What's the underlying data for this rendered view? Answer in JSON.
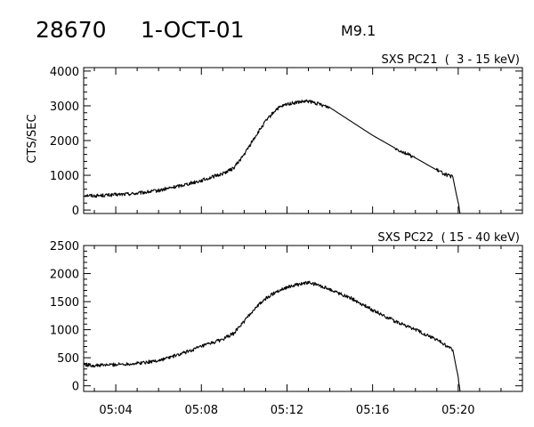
{
  "header": {
    "event_id": "28670",
    "date": "1-OCT-01",
    "flare_class": "M9.1"
  },
  "chart_data": [
    {
      "type": "line",
      "title": "SXS PC21  (  3 - 15 keV)",
      "ylabel": "CTS/SEC",
      "xlim": [
        "05:02:30",
        "05:23:00"
      ],
      "ylim": [
        -100,
        4100
      ],
      "yticks": [
        0,
        1000,
        2000,
        3000,
        4000
      ],
      "xticks": [
        "05:04",
        "05:08",
        "05:12",
        "05:16",
        "05:20"
      ],
      "series": [
        {
          "x": [
            "05:02:30",
            "05:03:00",
            "05:04:00",
            "05:05:00",
            "05:06:00",
            "05:07:00",
            "05:08:00",
            "05:09:00",
            "05:09:30",
            "05:10:00",
            "05:10:30",
            "05:11:00",
            "05:11:30",
            "05:12:00",
            "05:12:30",
            "05:13:00",
            "05:13:30",
            "05:14:00",
            "05:15:00",
            "05:16:00",
            "05:17:00",
            "05:18:00",
            "05:19:00",
            "05:19:30",
            "05:19:45",
            "05:20:00",
            "05:20:05"
          ],
          "y": [
            430,
            410,
            440,
            480,
            560,
            700,
            850,
            1050,
            1200,
            1600,
            2100,
            2550,
            2900,
            3050,
            3100,
            3130,
            3050,
            2950,
            2550,
            2150,
            1800,
            1500,
            1150,
            1000,
            950,
            200,
            -100
          ]
        }
      ]
    },
    {
      "type": "line",
      "title": "SXS PC22  ( 15 - 40 keV)",
      "ylabel": "",
      "xlim": [
        "05:02:30",
        "05:23:00"
      ],
      "ylim": [
        -100,
        2500
      ],
      "yticks": [
        0,
        500,
        1000,
        1500,
        2000,
        2500
      ],
      "xticks": [
        "05:04",
        "05:08",
        "05:12",
        "05:16",
        "05:20"
      ],
      "series": [
        {
          "x": [
            "05:02:30",
            "05:03:00",
            "05:04:00",
            "05:05:00",
            "05:06:00",
            "05:07:00",
            "05:08:00",
            "05:09:00",
            "05:09:30",
            "05:10:00",
            "05:10:30",
            "05:11:00",
            "05:11:30",
            "05:12:00",
            "05:12:30",
            "05:13:00",
            "05:13:30",
            "05:14:00",
            "05:15:00",
            "05:16:00",
            "05:17:00",
            "05:18:00",
            "05:19:00",
            "05:19:30",
            "05:19:45",
            "05:20:00",
            "05:20:05"
          ],
          "y": [
            380,
            360,
            380,
            400,
            450,
            560,
            700,
            830,
            930,
            1150,
            1380,
            1550,
            1680,
            1760,
            1800,
            1840,
            1790,
            1720,
            1560,
            1350,
            1160,
            1000,
            820,
            700,
            640,
            150,
            -100
          ]
        }
      ]
    }
  ]
}
